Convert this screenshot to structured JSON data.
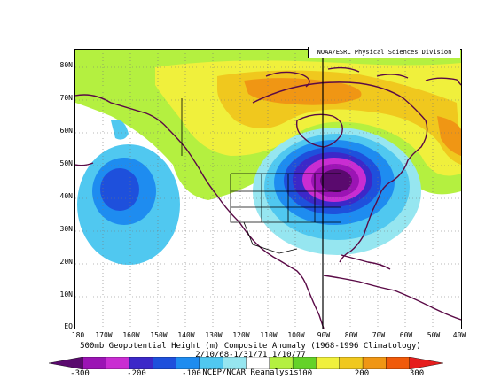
{
  "credit": "NOAA/ESRL Physical Sciences Division",
  "caption": {
    "line1": "500mb Geopotential Height (m) Composite Anomaly (1968-1996 Climatology)",
    "line2": "2/10/68-1/31/71 1/10/77",
    "line3": "NCEP/NCAR Reanalysis"
  },
  "axes": {
    "lat_labels": [
      "80N",
      "70N",
      "60N",
      "50N",
      "40N",
      "30N",
      "20N",
      "10N",
      "EQ"
    ],
    "lon_labels": [
      "180",
      "170W",
      "160W",
      "150W",
      "140W",
      "130W",
      "120W",
      "110W",
      "100W",
      "90W",
      "80W",
      "70W",
      "60W",
      "50W",
      "40W"
    ]
  },
  "colorbar": {
    "labels": [
      "-300",
      "-200",
      "-100",
      "100",
      "200",
      "300"
    ],
    "colors": [
      "#5a0a6e",
      "#9b14b4",
      "#c92dd2",
      "#3c28c8",
      "#1e50dc",
      "#1e8cf0",
      "#50c8f0",
      "#96e6f0",
      "#ffffff",
      "#b4f040",
      "#64d228",
      "#f0f03c",
      "#f0c81e",
      "#f09614",
      "#f05a0a",
      "#e61e1e"
    ]
  },
  "map": {
    "region": "North America / North Pacific",
    "lat_range": [
      0,
      85
    ],
    "lon_range": [
      -180,
      -40
    ],
    "features": {
      "negative_anomaly_centers": [
        "Eastern North America (~45N, 80W)",
        "North Pacific (~40N, 160W)"
      ],
      "positive_anomaly_band": "Arctic Canada / Greenland"
    }
  }
}
